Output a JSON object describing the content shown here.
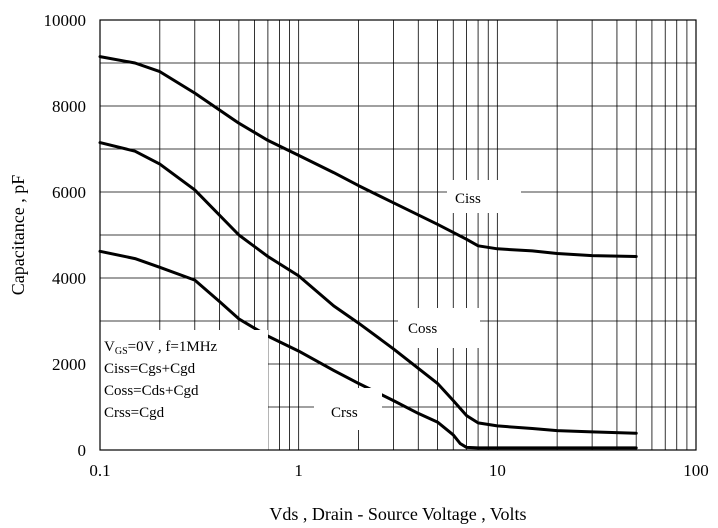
{
  "chart_data": {
    "type": "line",
    "xlabel": "Vds , Drain - Source Voltage , Volts",
    "ylabel": "Capacitance , pF",
    "x_scale": "log",
    "xlim": [
      0.1,
      100
    ],
    "ylim": [
      0,
      10000
    ],
    "x_ticks": [
      "0.1",
      "1",
      "10",
      "100"
    ],
    "y_ticks": [
      "0",
      "2000",
      "4000",
      "6000",
      "8000",
      "10000"
    ],
    "grid": true,
    "series": [
      {
        "name": "Ciss",
        "x": [
          0.1,
          0.15,
          0.2,
          0.3,
          0.5,
          0.7,
          1,
          1.5,
          2,
          3,
          5,
          7,
          8,
          10,
          15,
          20,
          30,
          50
        ],
        "y": [
          9150,
          9000,
          8800,
          8300,
          7600,
          7200,
          6850,
          6450,
          6150,
          5750,
          5250,
          4900,
          4750,
          4680,
          4630,
          4570,
          4520,
          4500
        ]
      },
      {
        "name": "Coss",
        "x": [
          0.1,
          0.15,
          0.2,
          0.3,
          0.5,
          0.7,
          1,
          1.5,
          2,
          3,
          5,
          6,
          7,
          8,
          10,
          15,
          20,
          30,
          50
        ],
        "y": [
          7150,
          6950,
          6650,
          6050,
          5000,
          4500,
          4050,
          3350,
          2950,
          2350,
          1550,
          1150,
          800,
          630,
          560,
          500,
          450,
          420,
          390
        ]
      },
      {
        "name": "Crss",
        "x": [
          0.1,
          0.15,
          0.2,
          0.3,
          0.4,
          0.5,
          0.7,
          1,
          1.5,
          2,
          3,
          4,
          5,
          6,
          6.5,
          7,
          8,
          10,
          20,
          50
        ],
        "y": [
          4620,
          4450,
          4250,
          3950,
          3450,
          3050,
          2650,
          2300,
          1850,
          1550,
          1150,
          850,
          650,
          350,
          150,
          60,
          50,
          50,
          50,
          50
        ]
      }
    ],
    "annotations": {
      "conditions": [
        "VGS=0V , f=1MHz",
        "Ciss=Cgs+Cgd",
        "Coss=Cds+Cgd",
        "Crss=Cgd"
      ],
      "vgs_main": "V",
      "vgs_sub": "GS",
      "vgs_rest": "=0V , f=1MHz"
    }
  }
}
